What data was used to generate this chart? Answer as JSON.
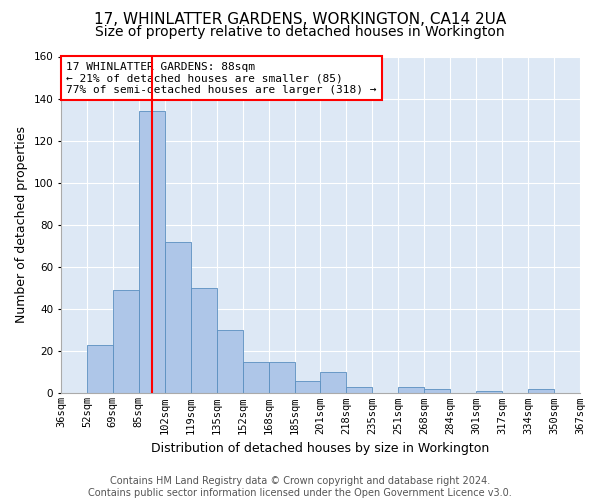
{
  "title_line1": "17, WHINLATTER GARDENS, WORKINGTON, CA14 2UA",
  "title_line2": "Size of property relative to detached houses in Workington",
  "xlabel": "Distribution of detached houses by size in Workington",
  "ylabel": "Number of detached properties",
  "footer_line1": "Contains HM Land Registry data © Crown copyright and database right 2024.",
  "footer_line2": "Contains public sector information licensed under the Open Government Licence v3.0.",
  "annotation_line1": "17 WHINLATTER GARDENS: 88sqm",
  "annotation_line2": "← 21% of detached houses are smaller (85)",
  "annotation_line3": "77% of semi-detached houses are larger (318) →",
  "bar_values": [
    0,
    23,
    49,
    134,
    72,
    50,
    30,
    15,
    15,
    6,
    10,
    3,
    0,
    3,
    2,
    0,
    1,
    0,
    2,
    0
  ],
  "bin_edges": [
    "36sqm",
    "52sqm",
    "69sqm",
    "85sqm",
    "102sqm",
    "119sqm",
    "135sqm",
    "152sqm",
    "168sqm",
    "185sqm",
    "201sqm",
    "218sqm",
    "235sqm",
    "251sqm",
    "268sqm",
    "284sqm",
    "301sqm",
    "317sqm",
    "334sqm",
    "350sqm",
    "367sqm"
  ],
  "ylim": [
    0,
    160
  ],
  "yticks": [
    0,
    20,
    40,
    60,
    80,
    100,
    120,
    140,
    160
  ],
  "bar_color": "#aec6e8",
  "bar_edge_color": "#5a8fc0",
  "vline_x": 3.5,
  "vline_color": "red",
  "background_color": "#dde8f5",
  "grid_color": "#ffffff",
  "annotation_box_edge": "red",
  "title_fontsize": 11,
  "subtitle_fontsize": 10,
  "axis_label_fontsize": 9,
  "tick_fontsize": 7.5,
  "annotation_fontsize": 8,
  "footer_fontsize": 7
}
